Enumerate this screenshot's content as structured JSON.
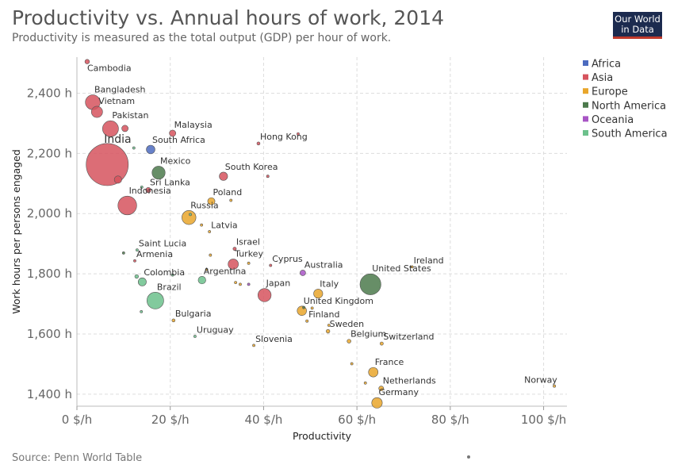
{
  "title": "Productivity vs. Annual hours of work, 2014",
  "subtitle": "Productivity is measured as the total output (GDP) per hour of work.",
  "logo": {
    "line1": "Our World",
    "line2": "in Data"
  },
  "source": "Source: Penn World Table",
  "chart_data": {
    "type": "scatter",
    "xlabel": "Productivity",
    "ylabel": "Work hours per persons engaged",
    "xlim": [
      0,
      105
    ],
    "ylim": [
      1360,
      2520
    ],
    "x_ticks": [
      {
        "value": 0,
        "label": "0 $/h"
      },
      {
        "value": 20,
        "label": "20 $/h"
      },
      {
        "value": 40,
        "label": "40 $/h"
      },
      {
        "value": 60,
        "label": "60 $/h"
      },
      {
        "value": 80,
        "label": "80 $/h"
      },
      {
        "value": 100,
        "label": "100 $/h"
      }
    ],
    "y_ticks": [
      {
        "value": 1400,
        "label": "1,400 h"
      },
      {
        "value": 1600,
        "label": "1,600 h"
      },
      {
        "value": 1800,
        "label": "1,800 h"
      },
      {
        "value": 2000,
        "label": "2,000 h"
      },
      {
        "value": 2200,
        "label": "2,200 h"
      },
      {
        "value": 2400,
        "label": "2,400 h"
      }
    ],
    "grid": true,
    "legend_position": "top-right",
    "size_encoding": "population",
    "series": [
      {
        "name": "Africa",
        "color": "#4c6bbf"
      },
      {
        "name": "Asia",
        "color": "#d6545e"
      },
      {
        "name": "Europe",
        "color": "#e9a62b"
      },
      {
        "name": "North America",
        "color": "#4c7a4c"
      },
      {
        "name": "Oceania",
        "color": "#a855c5"
      },
      {
        "name": "South America",
        "color": "#6cc18c"
      }
    ],
    "points": [
      {
        "label": "Cambodia",
        "region": "Asia",
        "x": 2.2,
        "y": 2505,
        "pop": 15
      },
      {
        "label": "Bangladesh",
        "region": "Asia",
        "x": 3.4,
        "y": 2370,
        "pop": 159
      },
      {
        "label": "Vietnam",
        "region": "Asia",
        "x": 4.3,
        "y": 2338,
        "pop": 91
      },
      {
        "label": "Pakistan",
        "region": "Asia",
        "x": 7.2,
        "y": 2282,
        "pop": 185
      },
      {
        "label": "",
        "region": "Asia",
        "x": 10.3,
        "y": 2283,
        "pop": 30
      },
      {
        "label": "India",
        "region": "Asia",
        "x": 6.5,
        "y": 2163,
        "pop": 1290
      },
      {
        "label": "",
        "region": "Asia",
        "x": 8.8,
        "y": 2113,
        "pop": 40
      },
      {
        "label": "",
        "region": "South America",
        "x": 12.2,
        "y": 2218,
        "pop": 3
      },
      {
        "label": "South Africa",
        "region": "Africa",
        "x": 15.8,
        "y": 2213,
        "pop": 54
      },
      {
        "label": "Malaysia",
        "region": "Asia",
        "x": 20.5,
        "y": 2267,
        "pop": 30
      },
      {
        "label": "Mexico",
        "region": "North America",
        "x": 17.5,
        "y": 2136,
        "pop": 125
      },
      {
        "label": "Sri Lanka",
        "region": "Asia",
        "x": 15.3,
        "y": 2078,
        "pop": 20
      },
      {
        "label": "",
        "region": "South America",
        "x": 13.9,
        "y": 2088,
        "pop": 3
      },
      {
        "label": "Indonesia",
        "region": "Asia",
        "x": 10.8,
        "y": 2027,
        "pop": 255
      },
      {
        "label": "Hong Kong",
        "region": "Asia",
        "x": 38.9,
        "y": 2233,
        "pop": 7
      },
      {
        "label": "",
        "region": "Asia",
        "x": 47.4,
        "y": 2265,
        "pop": 3
      },
      {
        "label": "South Korea",
        "region": "Asia",
        "x": 31.4,
        "y": 2124,
        "pop": 50
      },
      {
        "label": "",
        "region": "Asia",
        "x": 40.9,
        "y": 2124,
        "pop": 5
      },
      {
        "label": "Poland",
        "region": "Europe",
        "x": 28.8,
        "y": 2041,
        "pop": 38
      },
      {
        "label": "",
        "region": "Europe",
        "x": 33.0,
        "y": 2044,
        "pop": 2
      },
      {
        "label": "Russia",
        "region": "Europe",
        "x": 24.0,
        "y": 1987,
        "pop": 144
      },
      {
        "label": "",
        "region": "South America",
        "x": 24.3,
        "y": 1997,
        "pop": 3
      },
      {
        "label": "",
        "region": "Europe",
        "x": 26.7,
        "y": 1962,
        "pop": 2
      },
      {
        "label": "Latvia",
        "region": "Europe",
        "x": 28.4,
        "y": 1940,
        "pop": 2
      },
      {
        "label": "Saint Lucia",
        "region": "South America",
        "x": 12.9,
        "y": 1879,
        "pop": 1
      },
      {
        "label": "",
        "region": "North America",
        "x": 10.0,
        "y": 1869,
        "pop": 1
      },
      {
        "label": "Armenia",
        "region": "Asia",
        "x": 12.4,
        "y": 1843,
        "pop": 3
      },
      {
        "label": "Israel",
        "region": "Asia",
        "x": 33.8,
        "y": 1883,
        "pop": 8
      },
      {
        "label": "",
        "region": "Europe",
        "x": 28.6,
        "y": 1862,
        "pop": 2
      },
      {
        "label": "Turkey",
        "region": "Asia",
        "x": 33.5,
        "y": 1832,
        "pop": 77
      },
      {
        "label": "Cyprus",
        "region": "Asia",
        "x": 41.5,
        "y": 1828,
        "pop": 1
      },
      {
        "label": "",
        "region": "Europe",
        "x": 36.8,
        "y": 1835,
        "pop": 2
      },
      {
        "label": "Australia",
        "region": "Oceania",
        "x": 48.4,
        "y": 1803,
        "pop": 23
      },
      {
        "label": "Ireland",
        "region": "Europe",
        "x": 71.8,
        "y": 1823,
        "pop": 4
      },
      {
        "label": "United States",
        "region": "North America",
        "x": 62.9,
        "y": 1765,
        "pop": 319
      },
      {
        "label": "Colombia",
        "region": "South America",
        "x": 14.0,
        "y": 1773,
        "pop": 48
      },
      {
        "label": "",
        "region": "South America",
        "x": 12.8,
        "y": 1791,
        "pop": 10
      },
      {
        "label": "",
        "region": "South America",
        "x": 20.5,
        "y": 1796,
        "pop": 3
      },
      {
        "label": "Argentina",
        "region": "South America",
        "x": 26.8,
        "y": 1779,
        "pop": 42
      },
      {
        "label": "",
        "region": "Europe",
        "x": 27.8,
        "y": 1814,
        "pop": 3
      },
      {
        "label": "",
        "region": "Europe",
        "x": 34.0,
        "y": 1771,
        "pop": 3
      },
      {
        "label": "",
        "region": "Europe",
        "x": 35.0,
        "y": 1765,
        "pop": 2
      },
      {
        "label": "",
        "region": "Oceania",
        "x": 36.8,
        "y": 1765,
        "pop": 1
      },
      {
        "label": "Japan",
        "region": "Asia",
        "x": 40.2,
        "y": 1729,
        "pop": 127
      },
      {
        "label": "Italy",
        "region": "Europe",
        "x": 51.7,
        "y": 1734,
        "pop": 60
      },
      {
        "label": "Brazil",
        "region": "South America",
        "x": 16.8,
        "y": 1711,
        "pop": 204
      },
      {
        "label": "",
        "region": "South America",
        "x": 13.8,
        "y": 1674,
        "pop": 1
      },
      {
        "label": "United Kingdom",
        "region": "Europe",
        "x": 48.2,
        "y": 1677,
        "pop": 64
      },
      {
        "label": "",
        "region": "North America",
        "x": 48.6,
        "y": 1688,
        "pop": 2
      },
      {
        "label": "",
        "region": "Europe",
        "x": 50.4,
        "y": 1686,
        "pop": 2
      },
      {
        "label": "Finland",
        "region": "Europe",
        "x": 49.3,
        "y": 1643,
        "pop": 5
      },
      {
        "label": "Bulgaria",
        "region": "Europe",
        "x": 20.7,
        "y": 1645,
        "pop": 7
      },
      {
        "label": "Sweden",
        "region": "Europe",
        "x": 53.8,
        "y": 1609,
        "pop": 10
      },
      {
        "label": "",
        "region": "Europe",
        "x": 54.0,
        "y": 1629,
        "pop": 2
      },
      {
        "label": "Uruguay",
        "region": "South America",
        "x": 25.3,
        "y": 1592,
        "pop": 3
      },
      {
        "label": "Slovenia",
        "region": "Europe",
        "x": 37.9,
        "y": 1562,
        "pop": 2
      },
      {
        "label": "Belgium",
        "region": "Europe",
        "x": 58.3,
        "y": 1576,
        "pop": 11
      },
      {
        "label": "Switzerland",
        "region": "Europe",
        "x": 65.3,
        "y": 1568,
        "pop": 8
      },
      {
        "label": "",
        "region": "Europe",
        "x": 58.9,
        "y": 1501,
        "pop": 1
      },
      {
        "label": "France",
        "region": "Europe",
        "x": 63.5,
        "y": 1473,
        "pop": 66
      },
      {
        "label": "",
        "region": "Europe",
        "x": 61.8,
        "y": 1437,
        "pop": 2
      },
      {
        "label": "Netherlands",
        "region": "Europe",
        "x": 65.2,
        "y": 1419,
        "pop": 17
      },
      {
        "label": "Germany",
        "region": "Europe",
        "x": 64.3,
        "y": 1371,
        "pop": 81
      },
      {
        "label": "Norway",
        "region": "Europe",
        "x": 102.3,
        "y": 1427,
        "pop": 5
      }
    ]
  }
}
